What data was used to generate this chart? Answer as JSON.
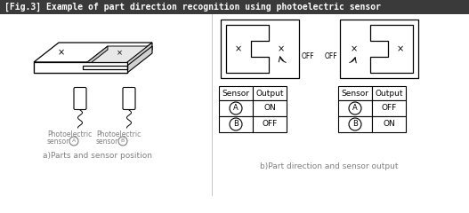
{
  "title": "[Fig.3] Example of part direction recognition using photoelectric sensor",
  "title_bg": "#3a3a3a",
  "title_color": "#ffffff",
  "caption_a": "a)Parts and sensor position",
  "caption_b": "b)Part direction and sensor output",
  "label_color": "#808080",
  "table1_headers": [
    "Sensor",
    "Output"
  ],
  "table1_rows": [
    [
      "A",
      "ON"
    ],
    [
      "B",
      "OFF"
    ]
  ],
  "table2_headers": [
    "Sensor",
    "Output"
  ],
  "table2_rows": [
    [
      "A",
      "OFF"
    ],
    [
      "B",
      "ON"
    ]
  ]
}
